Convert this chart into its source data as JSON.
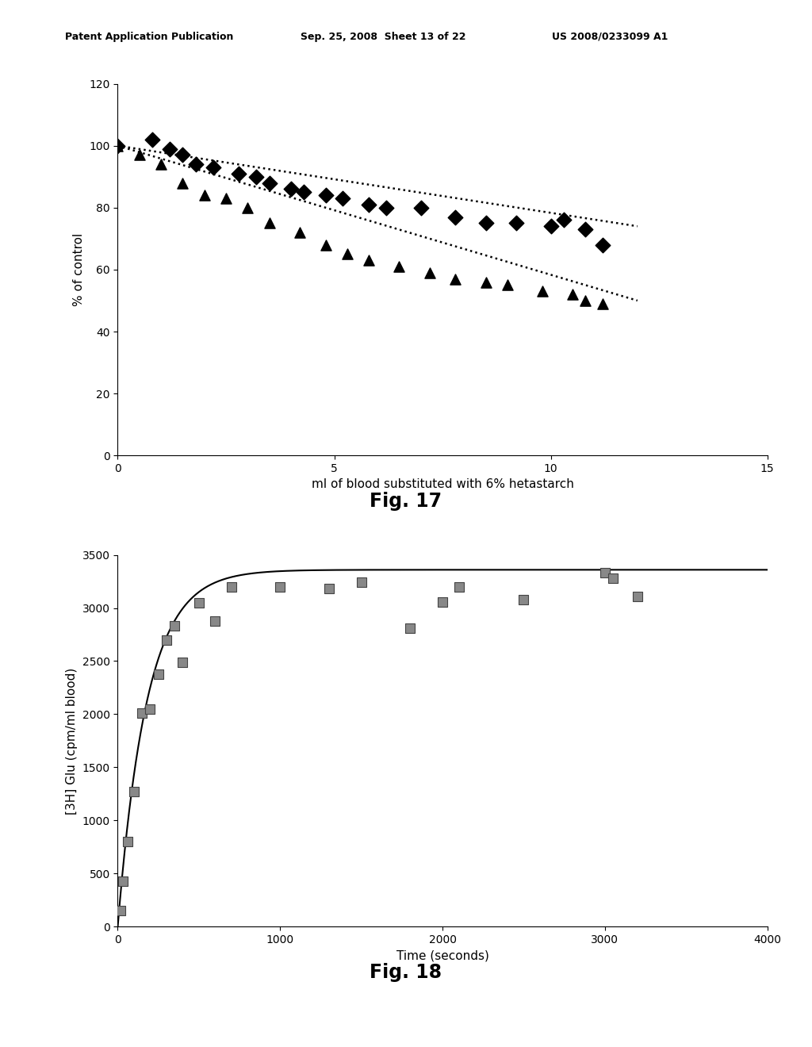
{
  "fig17": {
    "xlabel": "ml of blood substituted with 6% hetastarch",
    "ylabel": "% of control",
    "xlim": [
      0,
      15
    ],
    "ylim": [
      0,
      120
    ],
    "xticks": [
      0,
      5,
      10,
      15
    ],
    "yticks": [
      0,
      20,
      40,
      60,
      80,
      100,
      120
    ],
    "diamonds_x": [
      0.0,
      0.8,
      1.2,
      1.5,
      1.8,
      2.2,
      2.8,
      3.2,
      3.5,
      4.0,
      4.3,
      4.8,
      5.2,
      5.8,
      6.2,
      7.0,
      7.8,
      8.5,
      9.2,
      10.0,
      10.3,
      10.8,
      11.2
    ],
    "diamonds_y": [
      100,
      102,
      99,
      97,
      94,
      93,
      91,
      90,
      88,
      86,
      85,
      84,
      83,
      81,
      80,
      80,
      77,
      75,
      75,
      74,
      76,
      73,
      68
    ],
    "triangles_x": [
      0.0,
      0.5,
      1.0,
      1.5,
      2.0,
      2.5,
      3.0,
      3.5,
      4.2,
      4.8,
      5.3,
      5.8,
      6.5,
      7.2,
      7.8,
      8.5,
      9.0,
      9.8,
      10.5,
      10.8,
      11.2
    ],
    "triangles_y": [
      100,
      97,
      94,
      88,
      84,
      83,
      80,
      75,
      72,
      68,
      65,
      63,
      61,
      59,
      57,
      56,
      55,
      53,
      52,
      50,
      49
    ],
    "trend_diamonds_x0": 0,
    "trend_diamonds_y0": 100,
    "trend_diamonds_x1": 12,
    "trend_diamonds_y1": 74,
    "trend_triangles_x0": 0,
    "trend_triangles_y0": 100,
    "trend_triangles_x1": 12,
    "trend_triangles_y1": 50
  },
  "fig18": {
    "xlabel": "Time (seconds)",
    "ylabel": "[3H] Glu (cpm/ml blood)",
    "xlim": [
      0,
      4000
    ],
    "ylim": [
      0,
      3500
    ],
    "xticks": [
      0,
      1000,
      2000,
      3000,
      4000
    ],
    "yticks": [
      0,
      500,
      1000,
      1500,
      2000,
      2500,
      3000,
      3500
    ],
    "scatter_x": [
      15,
      30,
      60,
      100,
      150,
      200,
      250,
      300,
      350,
      400,
      500,
      600,
      700,
      1000,
      1300,
      1500,
      1800,
      2000,
      2100,
      2500,
      3000,
      3050,
      3200
    ],
    "scatter_y": [
      150,
      430,
      800,
      1270,
      2010,
      2050,
      2380,
      2700,
      2830,
      2490,
      3050,
      2880,
      3200,
      3200,
      3180,
      3240,
      2810,
      3060,
      3200,
      3080,
      3330,
      3280,
      3110
    ],
    "curve_Vmax": 3360,
    "curve_tau": 180,
    "marker_color": "#888888",
    "marker_edge_color": "#444444"
  },
  "header_left": "Patent Application Publication",
  "header_mid": "Sep. 25, 2008  Sheet 13 of 22",
  "header_right": "US 2008/0233099 A1",
  "fig17_caption": "Fig. 17",
  "fig18_caption": "Fig. 18",
  "background_color": "#ffffff"
}
